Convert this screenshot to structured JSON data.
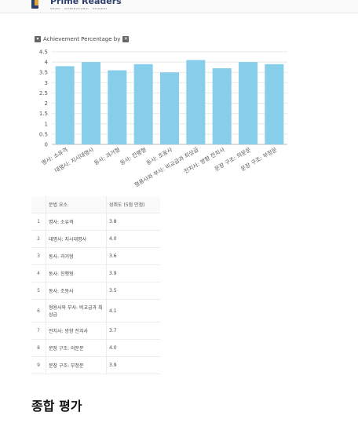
{
  "header": {
    "logo_name": "Prime Readers",
    "logo_tagline": "SMART · INTERNATIONAL · READERS"
  },
  "chart_header": {
    "dropdown_icon": "chevron-down-icon",
    "title": "Achievement Percentage by",
    "close_icon": "close-icon"
  },
  "chart_data": {
    "type": "bar",
    "categories": [
      "명사: 소유격",
      "대명사: 지시대명사",
      "동사: 과거형",
      "동사: 진행형",
      "동사: 조동사",
      "형용사와 부사: 비교급과 최상급",
      "전치사: 방향 전치사",
      "문장 구조: 의문문",
      "문장 구조: 부정문"
    ],
    "values": [
      3.8,
      4.0,
      3.6,
      3.9,
      3.5,
      4.1,
      3.7,
      4.0,
      3.9
    ],
    "ylim": [
      0,
      4.5
    ],
    "yticks": [
      "0",
      "0.5",
      "1",
      "1.5",
      "2",
      "2.5",
      "3",
      "3.5",
      "4",
      "4.5"
    ],
    "bar_color": "#87ceeb",
    "grid": true
  },
  "table": {
    "headers": [
      "",
      "문법 요소",
      "성취도 (5점 만점)"
    ],
    "rows": [
      {
        "num": "1",
        "element": "명사: 소유격",
        "score": "3.8"
      },
      {
        "num": "2",
        "element": "대명사: 지시대명사",
        "score": "4.0"
      },
      {
        "num": "3",
        "element": "동사: 과거형",
        "score": "3.6"
      },
      {
        "num": "4",
        "element": "동사: 진행형",
        "score": "3.9"
      },
      {
        "num": "5",
        "element": "동사: 조동사",
        "score": "3.5"
      },
      {
        "num": "6",
        "element": "형용사와 부사: 비교급과 최상급",
        "score": "4.1"
      },
      {
        "num": "7",
        "element": "전치사: 방향 전치사",
        "score": "3.7"
      },
      {
        "num": "8",
        "element": "문장 구조: 의문문",
        "score": "4.0"
      },
      {
        "num": "9",
        "element": "문장 구조: 부정문",
        "score": "3.9"
      }
    ]
  },
  "section": {
    "title": "종합 평가"
  }
}
